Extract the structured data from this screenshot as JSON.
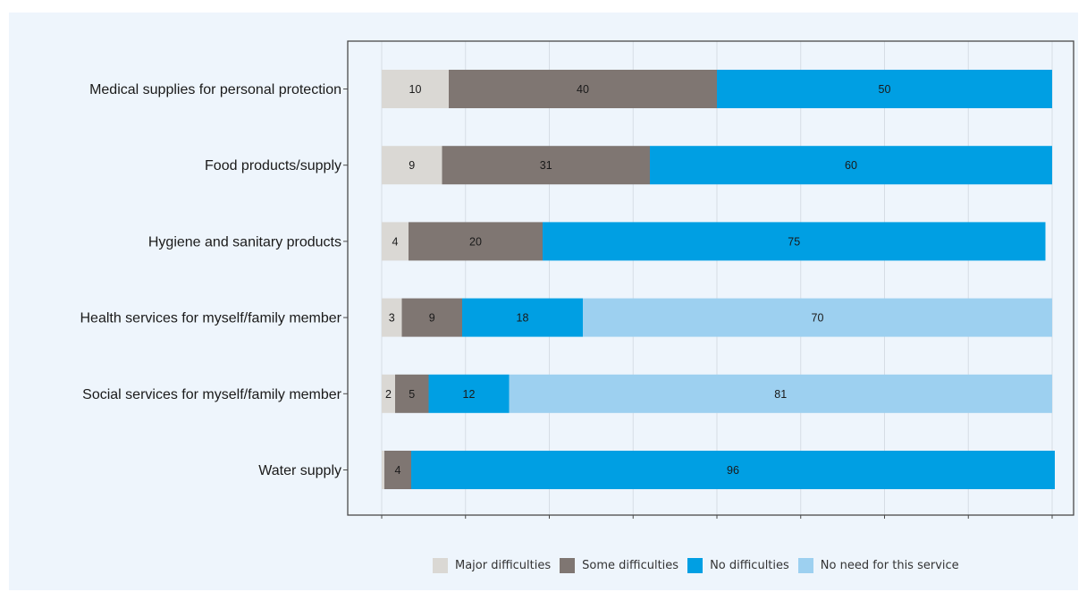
{
  "chart_data": {
    "type": "bar",
    "orientation": "horizontal",
    "stacked": true,
    "categories": [
      "Medical supplies for personal protection",
      "Food products/supply",
      "Hygiene and sanitary products",
      "Health services for myself/family member",
      "Social services for myself/family member",
      "Water supply"
    ],
    "series": [
      {
        "name": "Major difficulties",
        "color": "#dad8d4",
        "values": [
          10,
          9,
          4,
          3,
          2,
          0.4
        ],
        "labels": [
          "10",
          "9",
          "4",
          "3",
          "2",
          ""
        ]
      },
      {
        "name": "Some difficulties",
        "color": "#7f7672",
        "values": [
          40,
          31,
          20,
          9,
          5,
          4
        ],
        "labels": [
          "40",
          "31",
          "20",
          "9",
          "5",
          "4"
        ]
      },
      {
        "name": "No difficulties",
        "color": "#009fe3",
        "values": [
          50,
          60,
          75,
          18,
          12,
          96
        ],
        "labels": [
          "50",
          "60",
          "75",
          "18",
          "12",
          "96"
        ]
      },
      {
        "name": "No need for this service",
        "color": "#9dd0f0",
        "values": [
          0,
          0,
          0,
          70,
          81,
          0
        ],
        "labels": [
          "",
          "",
          "",
          "70",
          "81",
          ""
        ]
      }
    ],
    "xlim": [
      0,
      100
    ],
    "grid": true,
    "legend_position": "bottom"
  }
}
